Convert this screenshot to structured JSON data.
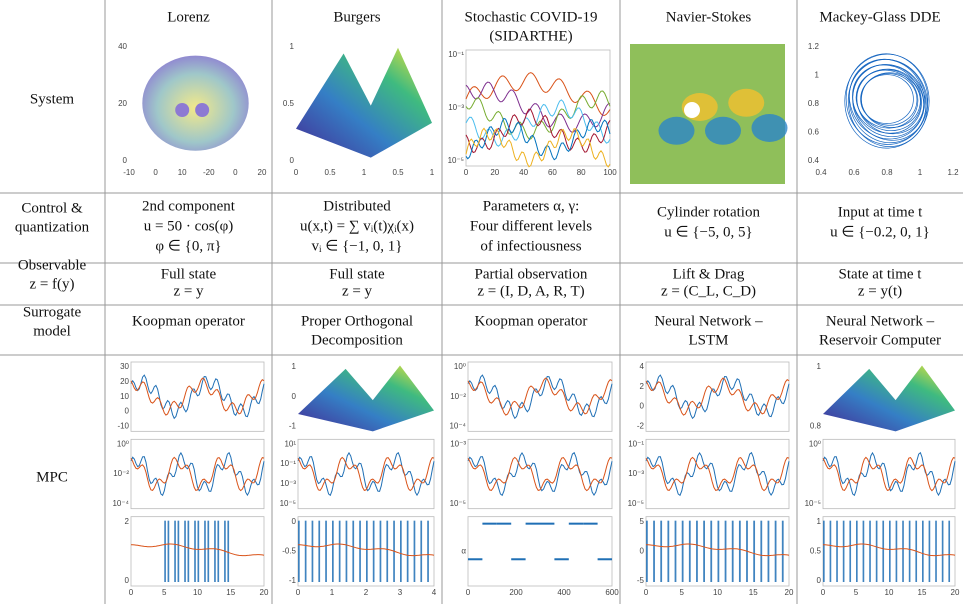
{
  "table": {
    "row_headers": [
      [
        "System"
      ],
      [
        "Control &",
        "quantization"
      ],
      [
        "Observable",
        "z = f(y)"
      ],
      [
        "Surrogate",
        "model"
      ],
      [
        "MPC"
      ]
    ],
    "columns": [
      {
        "name": [
          "Lorenz"
        ],
        "system": {
          "left": [
            "40",
            "20",
            "0"
          ],
          "bottom": [
            "-10",
            "0",
            "10",
            "-20",
            "0",
            "20"
          ]
        },
        "control": [
          "2nd component",
          "u = 50 · cos(φ)",
          "φ ∈ {0, π}"
        ],
        "observable": [
          "Full state",
          "z = y"
        ],
        "surrogate": [
          "Koopman operator"
        ],
        "mpc": [
          {
            "left": [
              "30",
              "20",
              "10",
              "0",
              "-10"
            ]
          },
          {
            "left": [
              "10⁰",
              "10⁻²",
              "10⁻⁴"
            ]
          },
          {
            "left": [
              "2",
              "0"
            ],
            "bottom": [
              "0",
              "5",
              "10",
              "15",
              "20"
            ]
          }
        ]
      },
      {
        "name": [
          "Burgers"
        ],
        "system": {
          "left": [
            "1",
            "0.5",
            "0"
          ],
          "bottom": [
            "0",
            "0.5",
            "1",
            "0.5",
            "1"
          ]
        },
        "control": [
          "Distributed",
          "u(x,t) = ∑ vᵢ(t)χᵢ(x)",
          "vᵢ ∈ {−1, 0, 1}"
        ],
        "observable": [
          "Full state",
          "z = y"
        ],
        "surrogate": [
          "Proper Orthogonal",
          "Decomposition"
        ],
        "mpc": [
          {
            "left": [
              "1",
              "0",
              "-1"
            ]
          },
          {
            "left": [
              "10¹",
              "10⁻¹",
              "10⁻³",
              "10⁻⁵"
            ]
          },
          {
            "left": [
              "0",
              "-0.5",
              "-1"
            ],
            "bottom": [
              "0",
              "1",
              "2",
              "3",
              "4"
            ]
          }
        ]
      },
      {
        "name": [
          "Stochastic COVID-19",
          "(SIDARTHE)"
        ],
        "system": {
          "left": [
            "10⁻¹",
            "10⁻³",
            "10⁻⁵"
          ],
          "bottom": [
            "0",
            "20",
            "40",
            "60",
            "80",
            "100"
          ]
        },
        "control": [
          "Parameters α, γ:",
          "Four different levels",
          "of infectiousness"
        ],
        "observable": [
          "Partial observation",
          "z = (I, D, A, R, T)"
        ],
        "surrogate": [
          "Koopman operator"
        ],
        "mpc": [
          {
            "left": [
              "10⁰",
              "10⁻²",
              "10⁻⁴"
            ]
          },
          {
            "left": [
              "10⁻³",
              "10⁻⁵"
            ]
          },
          {
            "left": [
              "α"
            ],
            "bottom": [
              "0",
              "200",
              "400",
              "600"
            ]
          }
        ]
      },
      {
        "name": [
          "Navier-Stokes"
        ],
        "system": {
          "left": [],
          "bottom": []
        },
        "control": [
          "Cylinder rotation",
          "u ∈ {−5, 0, 5}"
        ],
        "observable": [
          "Lift & Drag",
          "z = (C_L, C_D)"
        ],
        "surrogate": [
          "Neural Network –",
          "LSTM"
        ],
        "mpc": [
          {
            "left": [
              "4",
              "2",
              "0",
              "-2"
            ]
          },
          {
            "left": [
              "10⁻¹",
              "10⁻³",
              "10⁻⁵"
            ]
          },
          {
            "left": [
              "5",
              "0",
              "-5"
            ],
            "bottom": [
              "0",
              "5",
              "10",
              "15",
              "20"
            ]
          }
        ]
      },
      {
        "name": [
          "Mackey-Glass DDE"
        ],
        "system": {
          "left": [
            "1.2",
            "1",
            "0.8",
            "0.6",
            "0.4"
          ],
          "bottom": [
            "0.4",
            "0.6",
            "0.8",
            "1",
            "1.2"
          ]
        },
        "control": [
          "Input at time t",
          "u ∈ {−0.2, 0, 1}"
        ],
        "observable": [
          "State at time t",
          "z = y(t)"
        ],
        "surrogate": [
          "Neural Network –",
          "Reservoir Computer"
        ],
        "mpc": [
          {
            "left": [
              "1",
              "0.8"
            ]
          },
          {
            "left": [
              "10⁰",
              "10⁻⁵"
            ]
          },
          {
            "left": [
              "1",
              "0.5",
              "0"
            ],
            "bottom": [
              "0",
              "5",
              "10",
              "15",
              "20"
            ]
          }
        ]
      }
    ]
  }
}
